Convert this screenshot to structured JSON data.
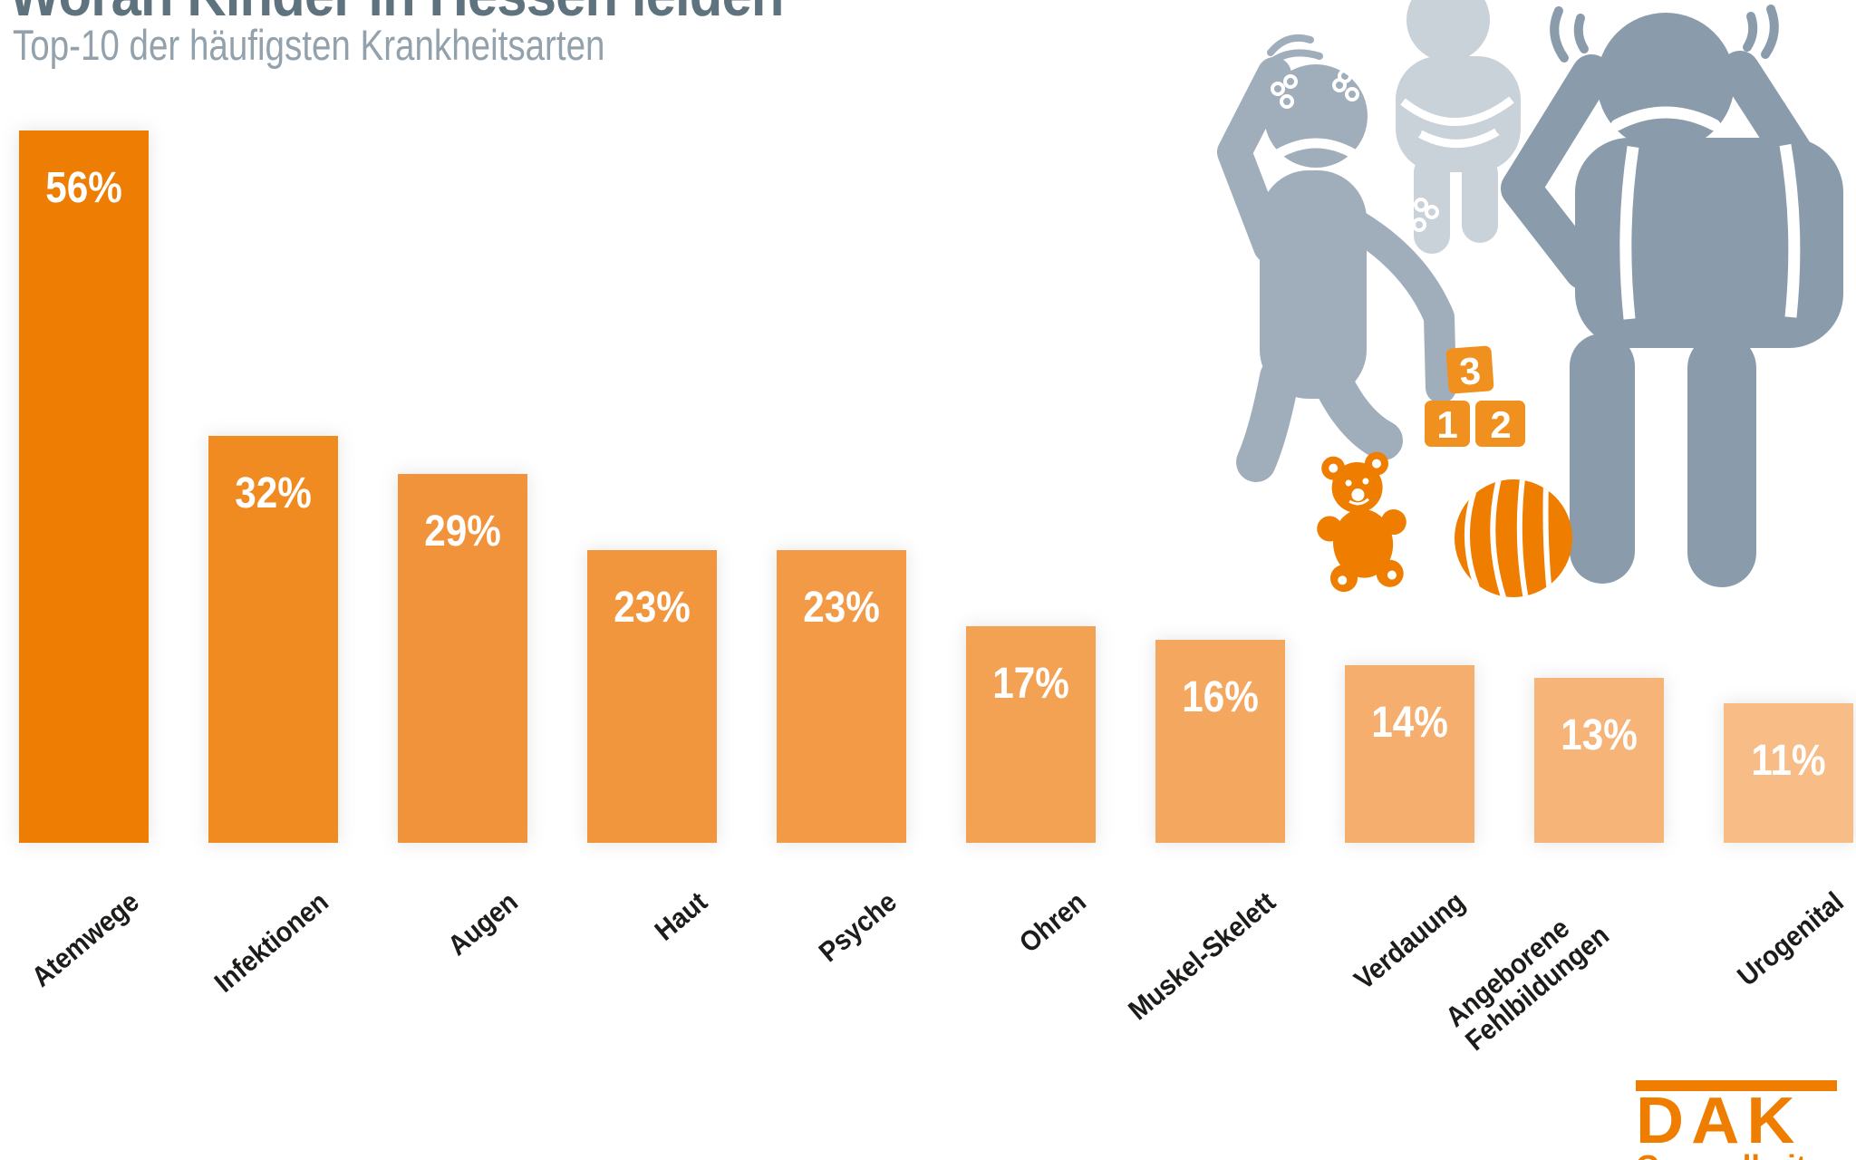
{
  "header": {
    "title": "Woran Kinder in Hessen leiden",
    "subtitle": "Top-10 der häufigsten Krankheitsarten"
  },
  "chart_data": {
    "type": "bar",
    "title": "Woran Kinder in Hessen leiden",
    "subtitle": "Top-10 der häufigsten Krankheitsarten",
    "unit": "%",
    "categories": [
      "Atemwege",
      "Infektionen",
      "Augen",
      "Haut",
      "Psyche",
      "Ohren",
      "Muskel-Skelett",
      "Verdauung",
      "Angeborene\nFehlbildungen",
      "Urogenital"
    ],
    "values": [
      56,
      32,
      29,
      23,
      23,
      17,
      16,
      14,
      13,
      11
    ],
    "value_labels": [
      "56%",
      "32%",
      "29%",
      "23%",
      "23%",
      "17%",
      "16%",
      "14%",
      "13%",
      "11%"
    ],
    "bar_colors": [
      "#ee7d04",
      "#f08b21",
      "#f1933a",
      "#f2963e",
      "#f29a46",
      "#f3a152",
      "#f4a75f",
      "#f5ae6d",
      "#f6b478",
      "#f8bc87"
    ],
    "ylim": [
      0,
      60
    ],
    "grid": false,
    "legend": null,
    "value_label_color": "#ffffff",
    "category_label_color": "#1c1c1a"
  },
  "illustration": {
    "figures": [
      "sad-child-with-rash",
      "child-with-stomach-ache",
      "child-covering-ears"
    ],
    "toys": [
      "teddy-bear",
      "number-blocks",
      "striped-ball"
    ],
    "blocks": {
      "one": "1",
      "two": "2",
      "three": "3"
    },
    "colors": {
      "figure_light": "#c9d1d9",
      "figure_medium": "#a0aebc",
      "figure_dark": "#8a9cab",
      "toy_orange": "#ee7d00",
      "block_orange": "#f0901e"
    }
  },
  "footer": {
    "logo_text": "DAK",
    "logo_subtext": "Gesundheit",
    "logo_color": "#ef7d00"
  }
}
